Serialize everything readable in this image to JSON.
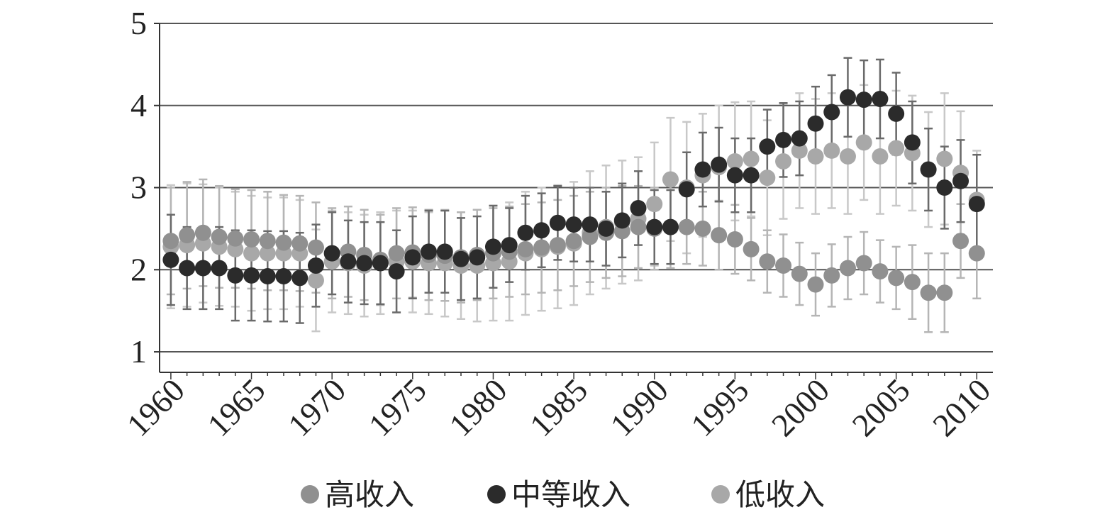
{
  "chart_data": {
    "type": "scatter",
    "title": "",
    "xlabel": "",
    "ylabel": "",
    "xlim": [
      1959.3,
      2011.0
    ],
    "ylim": [
      0.75,
      5
    ],
    "x_ticks": [
      "1960",
      "1965",
      "1970",
      "1975",
      "1980",
      "1985",
      "1990",
      "1995",
      "2000",
      "2005",
      "2010"
    ],
    "y_ticks": [
      "1",
      "2",
      "3",
      "4",
      "5"
    ],
    "grid": "horizontal",
    "legend_position": "bottom",
    "error_bars": true,
    "series": [
      {
        "name": "高收入",
        "color": "#909090",
        "x": [
          1960,
          1961,
          1962,
          1963,
          1964,
          1965,
          1966,
          1967,
          1968,
          1969,
          1970,
          1971,
          1972,
          1973,
          1974,
          1975,
          1976,
          1977,
          1978,
          1979,
          1980,
          1981,
          1982,
          1983,
          1984,
          1985,
          1986,
          1987,
          1988,
          1989,
          1990,
          1991,
          1992,
          1993,
          1994,
          1995,
          1996,
          1997,
          1998,
          1999,
          2000,
          2001,
          2002,
          2003,
          2004,
          2005,
          2006,
          2007,
          2008,
          2009,
          2010
        ],
        "y": [
          2.35,
          2.42,
          2.45,
          2.4,
          2.38,
          2.37,
          2.35,
          2.33,
          2.32,
          2.27,
          2.2,
          2.22,
          2.18,
          2.12,
          2.2,
          2.21,
          2.18,
          2.17,
          2.15,
          2.18,
          2.2,
          2.22,
          2.25,
          2.27,
          2.3,
          2.35,
          2.4,
          2.45,
          2.47,
          2.52,
          2.5,
          2.52,
          2.52,
          2.5,
          2.42,
          2.37,
          2.25,
          2.1,
          2.05,
          1.95,
          1.82,
          1.93,
          2.02,
          2.08,
          1.98,
          1.9,
          1.85,
          1.72,
          1.72,
          2.35,
          2.2
        ],
        "err": [
          0.65,
          0.65,
          0.65,
          0.62,
          0.6,
          0.6,
          0.6,
          0.58,
          0.58,
          0.55,
          0.55,
          0.55,
          0.55,
          0.55,
          0.55,
          0.55,
          0.55,
          0.55,
          0.55,
          0.55,
          0.55,
          0.55,
          0.55,
          0.55,
          0.55,
          0.55,
          0.55,
          0.55,
          0.55,
          0.5,
          0.5,
          0.5,
          0.45,
          0.45,
          0.42,
          0.42,
          0.38,
          0.38,
          0.38,
          0.38,
          0.38,
          0.38,
          0.38,
          0.38,
          0.38,
          0.38,
          0.45,
          0.48,
          0.48,
          0.45,
          0.55
        ]
      },
      {
        "name": "中等收入",
        "color": "#2b2b2b",
        "x": [
          1960,
          1961,
          1962,
          1963,
          1964,
          1965,
          1966,
          1967,
          1968,
          1969,
          1970,
          1971,
          1972,
          1973,
          1974,
          1975,
          1976,
          1977,
          1978,
          1979,
          1980,
          1981,
          1982,
          1983,
          1984,
          1985,
          1986,
          1987,
          1988,
          1989,
          1990,
          1991,
          1992,
          1993,
          1994,
          1995,
          1996,
          1997,
          1998,
          1999,
          2000,
          2001,
          2002,
          2003,
          2004,
          2005,
          2006,
          2007,
          2008,
          2009,
          2010
        ],
        "y": [
          2.12,
          2.02,
          2.02,
          2.02,
          1.93,
          1.93,
          1.92,
          1.92,
          1.9,
          2.05,
          2.2,
          2.1,
          2.08,
          2.08,
          1.98,
          2.15,
          2.22,
          2.22,
          2.13,
          2.15,
          2.28,
          2.3,
          2.45,
          2.48,
          2.57,
          2.55,
          2.55,
          2.5,
          2.6,
          2.75,
          2.52,
          2.52,
          2.98,
          3.22,
          3.28,
          3.15,
          3.15,
          3.5,
          3.58,
          3.6,
          3.78,
          3.92,
          4.1,
          4.07,
          4.08,
          3.9,
          3.55,
          3.22,
          3.0,
          3.08,
          2.8
        ],
        "err": [
          0.55,
          0.5,
          0.5,
          0.5,
          0.55,
          0.55,
          0.55,
          0.55,
          0.55,
          0.5,
          0.5,
          0.5,
          0.5,
          0.5,
          0.5,
          0.5,
          0.5,
          0.5,
          0.5,
          0.5,
          0.5,
          0.45,
          0.45,
          0.45,
          0.45,
          0.45,
          0.45,
          0.45,
          0.45,
          0.45,
          0.45,
          0.45,
          0.45,
          0.45,
          0.45,
          0.45,
          0.45,
          0.45,
          0.45,
          0.45,
          0.45,
          0.45,
          0.48,
          0.48,
          0.48,
          0.5,
          0.5,
          0.5,
          0.5,
          0.5,
          0.6
        ]
      },
      {
        "name": "低收入",
        "color": "#a8a8a8",
        "x": [
          1960,
          1961,
          1962,
          1963,
          1964,
          1965,
          1966,
          1967,
          1968,
          1969,
          1970,
          1971,
          1972,
          1973,
          1974,
          1975,
          1976,
          1977,
          1978,
          1979,
          1980,
          1981,
          1982,
          1983,
          1984,
          1985,
          1986,
          1987,
          1988,
          1989,
          1990,
          1991,
          1992,
          1993,
          1994,
          1995,
          1996,
          1997,
          1998,
          1999,
          2000,
          2001,
          2002,
          2003,
          2004,
          2005,
          2006,
          2007,
          2008,
          2009,
          2010
        ],
        "y": [
          2.28,
          2.3,
          2.32,
          2.28,
          2.25,
          2.2,
          2.2,
          2.2,
          2.2,
          1.87,
          2.1,
          2.08,
          2.05,
          2.08,
          2.1,
          2.1,
          2.08,
          2.08,
          2.05,
          2.05,
          2.08,
          2.1,
          2.2,
          2.25,
          2.28,
          2.32,
          2.45,
          2.52,
          2.58,
          2.62,
          2.8,
          3.1,
          3.0,
          3.15,
          3.25,
          3.32,
          3.35,
          3.12,
          3.32,
          3.45,
          3.38,
          3.45,
          3.38,
          3.55,
          3.38,
          3.48,
          3.42,
          3.22,
          3.35,
          3.18,
          2.85
        ],
        "err": [
          0.75,
          0.75,
          0.72,
          0.72,
          0.7,
          0.7,
          0.68,
          0.68,
          0.65,
          0.62,
          0.62,
          0.62,
          0.62,
          0.62,
          0.62,
          0.62,
          0.62,
          0.65,
          0.65,
          0.68,
          0.7,
          0.72,
          0.75,
          0.75,
          0.75,
          0.75,
          0.75,
          0.75,
          0.75,
          0.75,
          0.75,
          0.75,
          0.8,
          0.75,
          0.75,
          0.72,
          0.7,
          0.7,
          0.7,
          0.7,
          0.7,
          0.7,
          0.7,
          0.7,
          0.7,
          0.7,
          0.7,
          0.7,
          0.8,
          0.75,
          0.6
        ]
      }
    ]
  }
}
